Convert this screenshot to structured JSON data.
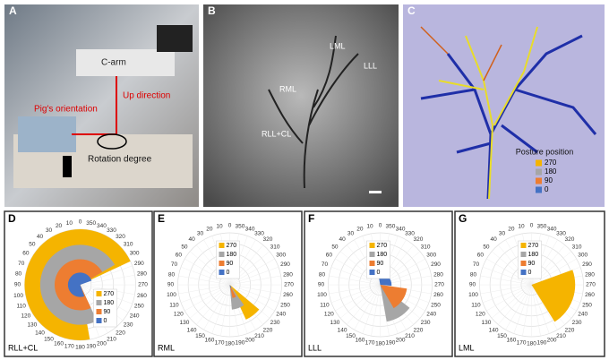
{
  "panels": {
    "a": {
      "letter": "A",
      "labels": [
        "C-arm",
        "Up direction",
        "Pig's orientation",
        "Rotation degree"
      ]
    },
    "b": {
      "letter": "B",
      "labels": [
        "LML",
        "LLL",
        "RML",
        "RLL+CL"
      ]
    },
    "c": {
      "letter": "C",
      "legend_title": "Posture position",
      "legend": [
        "270",
        "180",
        "90",
        "0"
      ]
    }
  },
  "polar_axis": {
    "ticks": [
      0,
      10,
      20,
      30,
      40,
      50,
      60,
      70,
      80,
      90,
      100,
      110,
      120,
      130,
      140,
      150,
      160,
      170,
      180,
      190,
      200,
      210,
      220,
      230,
      240,
      250,
      260,
      270,
      280,
      290,
      300,
      310,
      320,
      330,
      340,
      350
    ],
    "rlim": [
      0,
      5
    ],
    "rings": [
      1,
      2,
      3,
      4,
      5
    ]
  },
  "chart_data": [
    {
      "type": "polar_wedge",
      "letter": "D",
      "title": "RLL+CL",
      "legend": "lower right",
      "series": [
        {
          "name": "270",
          "color": "#f5b400",
          "r": 5,
          "from": 295,
          "to": 190
        },
        {
          "name": "180",
          "color": "#a6a6a6",
          "r": 3.6,
          "from": 300,
          "to": 205
        },
        {
          "name": "90",
          "color": "#ed7d31",
          "r": 2.3,
          "from": 300,
          "to": 205
        },
        {
          "name": "0",
          "color": "#4472c4",
          "r": 1.1,
          "from": 290,
          "to": 200
        }
      ]
    },
    {
      "type": "polar_wedge",
      "letter": "E",
      "title": "RML",
      "legend": "upper left",
      "series": [
        {
          "name": "270",
          "color": "#f5b400",
          "r": 3.7,
          "from": 205,
          "to": 230
        },
        {
          "name": "180",
          "color": "#a6a6a6",
          "r": 2.4,
          "from": 185,
          "to": 215
        },
        {
          "name": "90",
          "color": "#ed7d31",
          "r": 1.3,
          "from": 192,
          "to": 208
        },
        {
          "name": "0",
          "color": "#4472c4",
          "r": 0.3,
          "from": 190,
          "to": 210
        }
      ]
    },
    {
      "type": "polar_wedge",
      "letter": "F",
      "title": "LLL",
      "legend": "upper left",
      "series": [
        {
          "name": "270",
          "color": "#f5b400",
          "r": 0.2,
          "from": 200,
          "to": 220
        },
        {
          "name": "180",
          "color": "#a6a6a6",
          "r": 3.6,
          "from": 190,
          "to": 232
        },
        {
          "name": "90",
          "color": "#ed7d31",
          "r": 2.6,
          "from": 210,
          "to": 262
        },
        {
          "name": "0",
          "color": "#4472c4",
          "r": 1.1,
          "from": 265,
          "to": 10
        }
      ]
    },
    {
      "type": "polar_wedge",
      "letter": "G",
      "title": "LML",
      "legend": "upper left",
      "series": [
        {
          "name": "270",
          "color": "#f5b400",
          "r": 4.2,
          "from": 212,
          "to": 290
        },
        {
          "name": "180",
          "color": "#a6a6a6",
          "r": 0.1,
          "from": 240,
          "to": 250
        },
        {
          "name": "90",
          "color": "#ed7d31",
          "r": 0.1,
          "from": 240,
          "to": 250
        },
        {
          "name": "0",
          "color": "#4472c4",
          "r": 0.1,
          "from": 240,
          "to": 250
        }
      ]
    }
  ]
}
